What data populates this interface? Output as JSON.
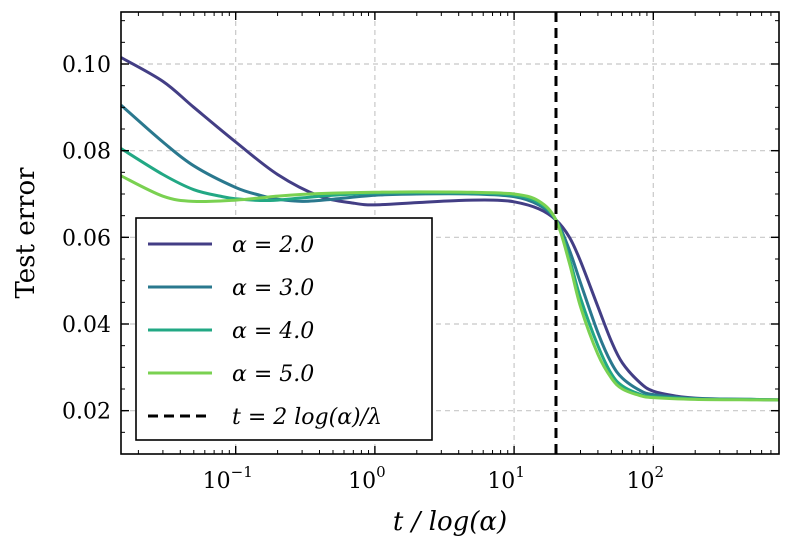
{
  "chart_data": {
    "type": "line",
    "title": "",
    "xlabel": "t / log(α)",
    "ylabel": "Test error",
    "xscale": "log",
    "xlim": [
      0.015,
      800
    ],
    "ylim": [
      0.01,
      0.112
    ],
    "grid": true,
    "x_ticks": [
      {
        "value": 0.1,
        "base": "10",
        "exp": "−1"
      },
      {
        "value": 1,
        "base": "10",
        "exp": "0"
      },
      {
        "value": 10,
        "base": "10",
        "exp": "1"
      },
      {
        "value": 100,
        "base": "10",
        "exp": "2"
      }
    ],
    "y_ticks": [
      {
        "value": 0.02,
        "label": "0.02"
      },
      {
        "value": 0.04,
        "label": "0.04"
      },
      {
        "value": 0.06,
        "label": "0.06"
      },
      {
        "value": 0.08,
        "label": "0.08"
      },
      {
        "value": 0.1,
        "label": "0.10"
      }
    ],
    "vline": {
      "x": 20,
      "style": "dashed",
      "color": "#000000"
    },
    "legend_position": "bottom-left",
    "series": [
      {
        "name": "α = 2.0",
        "color": "#433e85",
        "x": [
          0.015,
          0.03,
          0.05,
          0.1,
          0.2,
          0.4,
          0.7,
          1,
          2,
          4,
          7,
          10,
          15,
          20,
          25,
          30,
          40,
          50,
          60,
          80,
          100,
          150,
          200,
          300,
          500,
          800
        ],
        "y": [
          0.1015,
          0.096,
          0.09,
          0.082,
          0.0745,
          0.0695,
          0.0679,
          0.0675,
          0.068,
          0.0685,
          0.0686,
          0.0682,
          0.0666,
          0.064,
          0.06,
          0.0545,
          0.044,
          0.036,
          0.031,
          0.0265,
          0.0245,
          0.0233,
          0.0229,
          0.0227,
          0.0226,
          0.0225
        ]
      },
      {
        "name": "α = 3.0",
        "color": "#2a788e",
        "x": [
          0.015,
          0.03,
          0.05,
          0.1,
          0.15,
          0.2,
          0.3,
          0.5,
          1,
          2,
          5,
          10,
          15,
          20,
          25,
          30,
          40,
          50,
          60,
          80,
          100,
          200,
          500,
          800
        ],
        "y": [
          0.0905,
          0.082,
          0.0765,
          0.0715,
          0.0697,
          0.0688,
          0.0683,
          0.0688,
          0.0697,
          0.07,
          0.07,
          0.0694,
          0.0675,
          0.064,
          0.057,
          0.0495,
          0.038,
          0.031,
          0.0275,
          0.0247,
          0.0237,
          0.0228,
          0.0226,
          0.0225
        ]
      },
      {
        "name": "α = 4.0",
        "color": "#22a884",
        "x": [
          0.015,
          0.03,
          0.05,
          0.08,
          0.1,
          0.15,
          0.2,
          0.3,
          0.5,
          1,
          2,
          5,
          10,
          15,
          20,
          25,
          30,
          40,
          50,
          60,
          80,
          100,
          200,
          500,
          800
        ],
        "y": [
          0.0805,
          0.0745,
          0.071,
          0.0694,
          0.0689,
          0.0685,
          0.0686,
          0.0691,
          0.0697,
          0.0702,
          0.0703,
          0.0702,
          0.0697,
          0.068,
          0.064,
          0.055,
          0.046,
          0.035,
          0.0285,
          0.0257,
          0.0238,
          0.0232,
          0.0227,
          0.0226,
          0.0225
        ]
      },
      {
        "name": "α = 5.0",
        "color": "#7ad151",
        "x": [
          0.015,
          0.03,
          0.05,
          0.1,
          0.15,
          0.2,
          0.3,
          0.5,
          1,
          2,
          5,
          10,
          15,
          20,
          25,
          30,
          40,
          50,
          60,
          80,
          100,
          200,
          500,
          800
        ],
        "y": [
          0.0742,
          0.0695,
          0.0683,
          0.0686,
          0.0691,
          0.0695,
          0.0699,
          0.0702,
          0.0704,
          0.0705,
          0.0704,
          0.07,
          0.0684,
          0.064,
          0.054,
          0.044,
          0.033,
          0.0275,
          0.025,
          0.0235,
          0.023,
          0.0226,
          0.0225,
          0.0225
        ]
      }
    ],
    "legend": [
      {
        "label": "α = 2.0",
        "color": "#433e85",
        "style": "solid"
      },
      {
        "label": "α = 3.0",
        "color": "#2a788e",
        "style": "solid"
      },
      {
        "label": "α = 4.0",
        "color": "#22a884",
        "style": "solid"
      },
      {
        "label": "α = 5.0",
        "color": "#7ad151",
        "style": "solid"
      },
      {
        "label": "t = 2 log(α)/λ",
        "color": "#000000",
        "style": "dashed"
      }
    ]
  }
}
